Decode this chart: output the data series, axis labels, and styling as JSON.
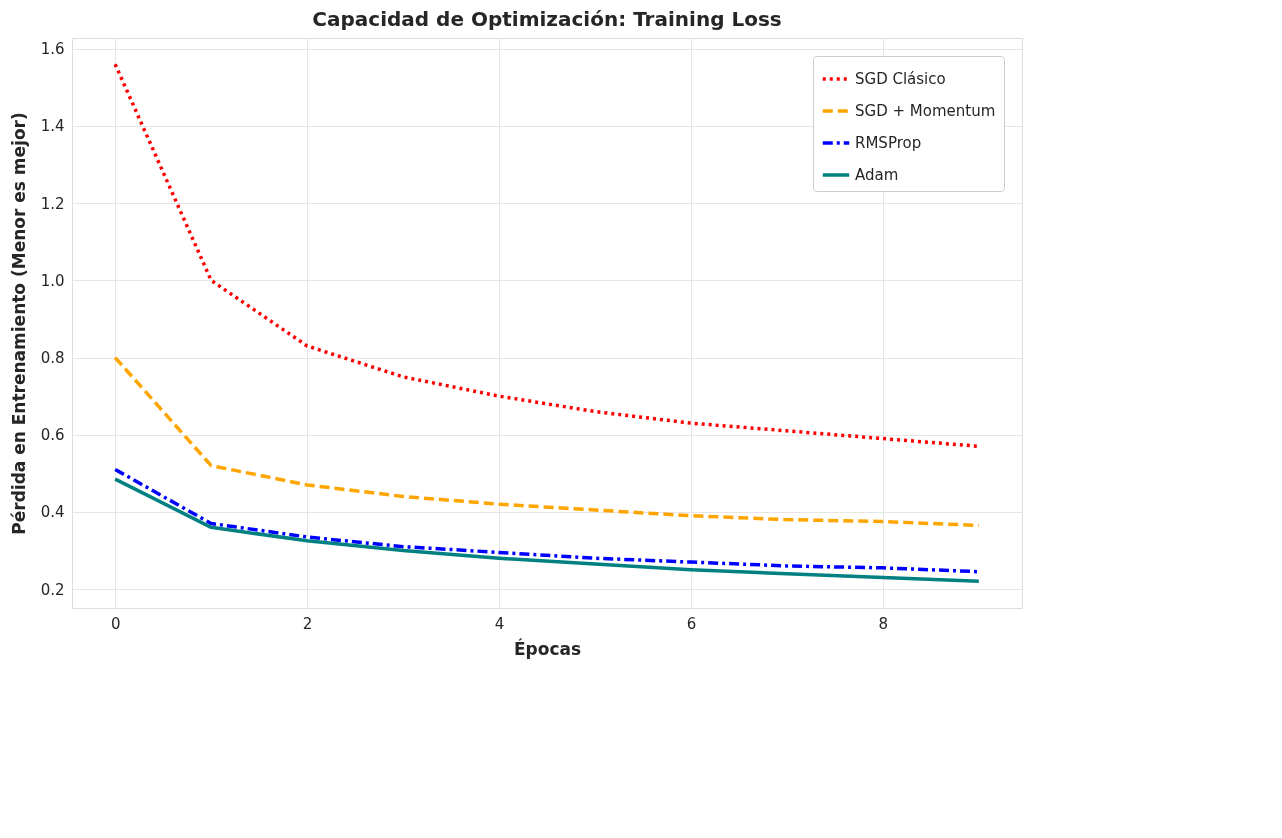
{
  "chart_data": {
    "type": "line",
    "title": "Capacidad de Optimización: Training Loss",
    "xlabel": "Épocas",
    "ylabel": "Pérdida en Entrenamiento (Menor es mejor)",
    "x": [
      0,
      1,
      2,
      3,
      4,
      5,
      6,
      7,
      8,
      9
    ],
    "series": [
      {
        "name": "SGD Clásico",
        "color": "#ff0000",
        "line_style": "dotted",
        "values": [
          1.56,
          1.0,
          0.83,
          0.75,
          0.7,
          0.66,
          0.63,
          0.61,
          0.59,
          0.57
        ]
      },
      {
        "name": "SGD + Momentum",
        "color": "#ffa500",
        "line_style": "dashed",
        "values": [
          0.8,
          0.52,
          0.47,
          0.44,
          0.42,
          0.405,
          0.39,
          0.38,
          0.375,
          0.365
        ]
      },
      {
        "name": "RMSProp",
        "color": "#0000ff",
        "line_style": "dashdot",
        "values": [
          0.51,
          0.37,
          0.335,
          0.31,
          0.295,
          0.28,
          0.27,
          0.26,
          0.255,
          0.245
        ]
      },
      {
        "name": "Adam",
        "color": "#008080",
        "line_style": "solid",
        "values": [
          0.485,
          0.36,
          0.325,
          0.3,
          0.28,
          0.265,
          0.25,
          0.24,
          0.23,
          0.22
        ]
      }
    ],
    "xlim": [
      -0.45,
      9.45
    ],
    "xticks": [
      0,
      2,
      4,
      6,
      8
    ],
    "ylim": [
      0.151,
      1.628
    ],
    "yticks": [
      0.2,
      0.4,
      0.6,
      0.8,
      {
        "value": 1,
        "label": "1.0"
      },
      1.2,
      1.4,
      1.6
    ],
    "grid": true,
    "legend": "top right",
    "marker": "none"
  }
}
